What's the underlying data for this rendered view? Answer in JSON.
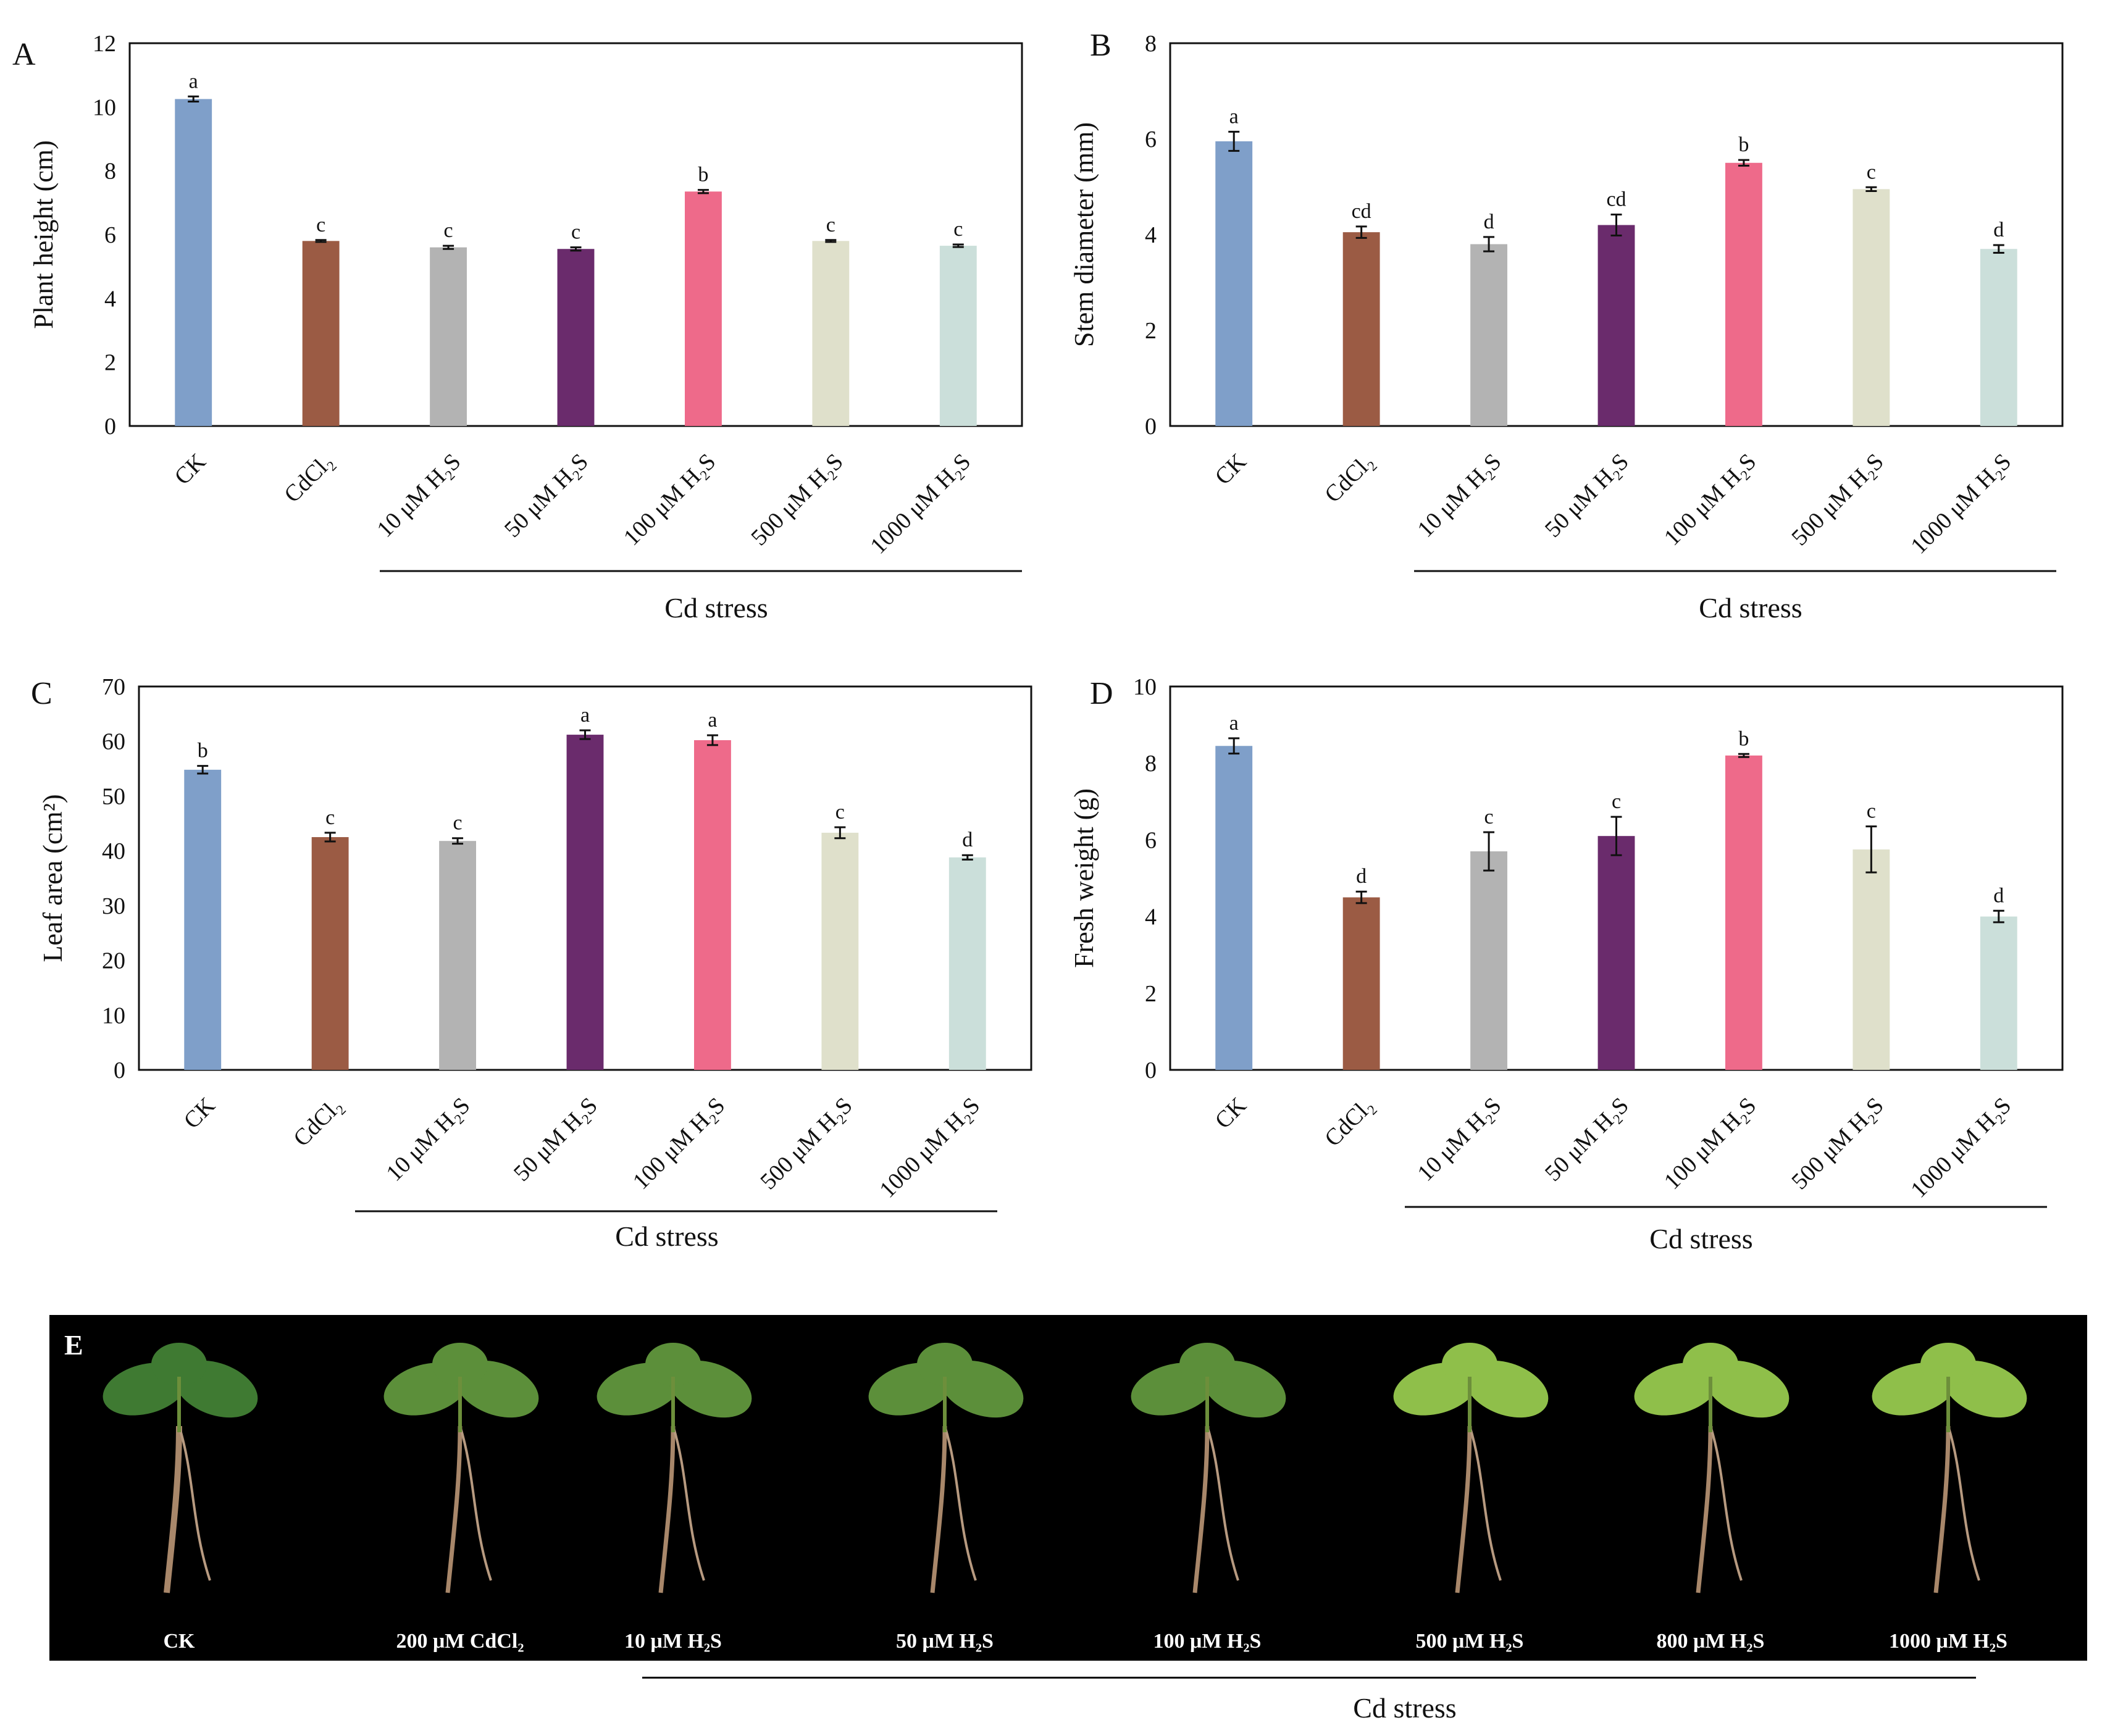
{
  "chart_data": [
    {
      "panel": "A",
      "type": "bar",
      "ylabel": "Plant height (cm)",
      "ylim": [
        0,
        12
      ],
      "yticks": [
        0,
        2,
        4,
        6,
        8,
        10,
        12
      ],
      "categories": [
        "CK",
        "CdCl₂",
        "10 μM H₂S",
        "50 μM H₂S",
        "100 μM H₂S",
        "500 μM H₂S",
        "1000 μM H₂S"
      ],
      "values": [
        10.25,
        5.8,
        5.6,
        5.55,
        7.35,
        5.8,
        5.65
      ],
      "errors": [
        0.08,
        0.03,
        0.05,
        0.05,
        0.05,
        0.03,
        0.04
      ],
      "letters": [
        "a",
        "c",
        "c",
        "c",
        "b",
        "c",
        "c"
      ],
      "group_label": "Cd stress"
    },
    {
      "panel": "B",
      "type": "bar",
      "ylabel": "Stem diameter (mm)",
      "ylim": [
        0,
        8
      ],
      "yticks": [
        0,
        2,
        4,
        6,
        8
      ],
      "categories": [
        "CK",
        "CdCl₂",
        "10 μM H₂S",
        "50 μM H₂S",
        "100 μM H₂S",
        "500 μM H₂S",
        "1000 μM H₂S"
      ],
      "values": [
        5.95,
        4.05,
        3.8,
        4.2,
        5.5,
        4.95,
        3.7
      ],
      "errors": [
        0.2,
        0.12,
        0.15,
        0.22,
        0.06,
        0.04,
        0.08
      ],
      "letters": [
        "a",
        "cd",
        "d",
        "cd",
        "b",
        "c",
        "d"
      ],
      "group_label": "Cd stress"
    },
    {
      "panel": "C",
      "type": "bar",
      "ylabel": "Leaf area (cm²)",
      "ylim": [
        0,
        70
      ],
      "yticks": [
        0,
        10,
        20,
        30,
        40,
        50,
        60,
        70
      ],
      "categories": [
        "CK",
        "CdCl₂",
        "10 μM H₂S",
        "50 μM H₂S",
        "100 μM H₂S",
        "500 μM H₂S",
        "1000 μM H₂S"
      ],
      "values": [
        54.8,
        42.5,
        41.8,
        61.2,
        60.2,
        43.3,
        38.8
      ],
      "errors": [
        0.7,
        0.8,
        0.5,
        0.8,
        0.9,
        1.0,
        0.4
      ],
      "letters": [
        "b",
        "c",
        "c",
        "a",
        "a",
        "c",
        "d"
      ],
      "group_label": "Cd stress"
    },
    {
      "panel": "D",
      "type": "bar",
      "ylabel": "Fresh weight (g)",
      "ylim": [
        0,
        10
      ],
      "yticks": [
        0,
        2,
        4,
        6,
        8,
        10
      ],
      "categories": [
        "CK",
        "CdCl₂",
        "10 μM H₂S",
        "50 μM H₂S",
        "100 μM H₂S",
        "500 μM H₂S",
        "1000 μM H₂S"
      ],
      "values": [
        8.45,
        4.5,
        5.7,
        6.1,
        8.2,
        5.75,
        4.0
      ],
      "errors": [
        0.2,
        0.15,
        0.5,
        0.5,
        0.04,
        0.6,
        0.15
      ],
      "letters": [
        "a",
        "d",
        "c",
        "c",
        "b",
        "c",
        "d"
      ],
      "group_label": "Cd stress"
    }
  ],
  "colors": [
    "#7f9fc9",
    "#9b5b44",
    "#b3b3b3",
    "#6a2b6c",
    "#ee6a8a",
    "#dfe0cb",
    "#cbdfda"
  ],
  "panel_e": {
    "letter": "E",
    "labels": [
      "CK",
      "200 μM CdCl₂",
      "10 μM H₂S",
      "50 μM H₂S",
      "100 μM H₂S",
      "500 μM H₂S",
      "800 μM H₂S",
      "1000 μM H₂S"
    ],
    "group_label": "Cd stress"
  }
}
